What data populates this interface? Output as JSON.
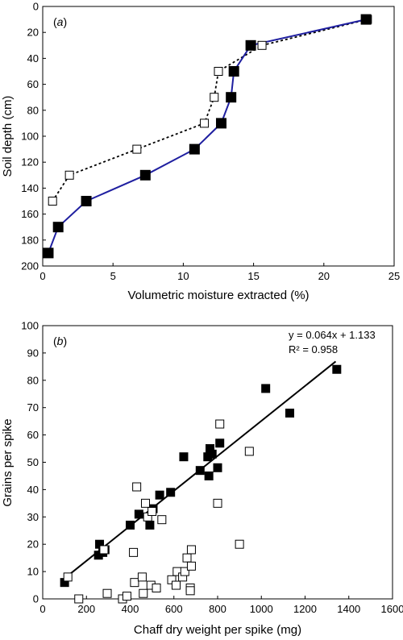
{
  "chart_data": [
    {
      "type": "line",
      "panel_label": "a",
      "xlabel": "Volumetric moisture extracted (%)",
      "ylabel": "Soil depth (cm)",
      "xlim": [
        0,
        25
      ],
      "ylim": [
        200,
        0
      ],
      "xticks": [
        0,
        5,
        10,
        15,
        20,
        25
      ],
      "yticks": [
        0,
        20,
        40,
        60,
        80,
        100,
        120,
        140,
        160,
        180,
        200
      ],
      "series": [
        {
          "marker": "filled-square",
          "line": "solid",
          "color": "#1f1fa0",
          "points": [
            [
              23.0,
              10
            ],
            [
              14.8,
              30
            ],
            [
              13.6,
              50
            ],
            [
              13.4,
              70
            ],
            [
              12.7,
              90
            ],
            [
              10.8,
              110
            ],
            [
              7.3,
              130
            ],
            [
              3.1,
              150
            ],
            [
              1.1,
              170
            ],
            [
              0.4,
              190
            ]
          ]
        },
        {
          "marker": "open-square",
          "line": "dotted",
          "color": "#000000",
          "points": [
            [
              23.1,
              10
            ],
            [
              15.6,
              30
            ],
            [
              12.5,
              50
            ],
            [
              12.2,
              70
            ],
            [
              11.5,
              90
            ],
            [
              6.7,
              110
            ],
            [
              1.9,
              130
            ],
            [
              0.7,
              150
            ]
          ]
        }
      ]
    },
    {
      "type": "scatter",
      "panel_label": "b",
      "xlabel": "Chaff dry weight per spike (mg)",
      "ylabel": "Grains per spike",
      "xlim": [
        0,
        1600
      ],
      "ylim": [
        0,
        100
      ],
      "xticks": [
        0,
        200,
        400,
        600,
        800,
        1000,
        1200,
        1400,
        1600
      ],
      "yticks": [
        0,
        10,
        20,
        30,
        40,
        50,
        60,
        70,
        80,
        90,
        100
      ],
      "annotation_eq": "y = 0.064x + 1.133",
      "annotation_r2": "R² = 0.958",
      "fit": {
        "slope": 0.064,
        "intercept": 1.133,
        "x_range": [
          95,
          1340
        ]
      },
      "series": [
        {
          "marker": "filled-square",
          "points": [
            [
              100,
              6
            ],
            [
              255,
              16
            ],
            [
              260,
              20
            ],
            [
              275,
              17
            ],
            [
              285,
              18
            ],
            [
              400,
              27
            ],
            [
              440,
              31
            ],
            [
              490,
              27
            ],
            [
              505,
              33
            ],
            [
              535,
              38
            ],
            [
              585,
              39
            ],
            [
              645,
              52
            ],
            [
              720,
              47
            ],
            [
              755,
              52
            ],
            [
              760,
              45
            ],
            [
              765,
              55
            ],
            [
              775,
              53
            ],
            [
              800,
              48
            ],
            [
              810,
              57
            ],
            [
              1020,
              77
            ],
            [
              1130,
              68
            ],
            [
              1345,
              84
            ]
          ]
        },
        {
          "marker": "open-square",
          "points": [
            [
              115,
              8
            ],
            [
              165,
              0
            ],
            [
              280,
              18
            ],
            [
              295,
              2
            ],
            [
              365,
              0
            ],
            [
              385,
              1
            ],
            [
              415,
              17
            ],
            [
              420,
              6
            ],
            [
              430,
              41
            ],
            [
              455,
              8
            ],
            [
              460,
              2
            ],
            [
              470,
              35
            ],
            [
              480,
              30
            ],
            [
              495,
              5
            ],
            [
              500,
              32
            ],
            [
              520,
              4
            ],
            [
              545,
              29
            ],
            [
              590,
              7
            ],
            [
              610,
              5
            ],
            [
              615,
              10
            ],
            [
              640,
              8
            ],
            [
              650,
              10
            ],
            [
              660,
              15
            ],
            [
              675,
              4
            ],
            [
              675,
              3
            ],
            [
              680,
              18
            ],
            [
              680,
              12
            ],
            [
              800,
              35
            ],
            [
              810,
              64
            ],
            [
              900,
              20
            ],
            [
              945,
              54
            ]
          ]
        }
      ]
    }
  ]
}
